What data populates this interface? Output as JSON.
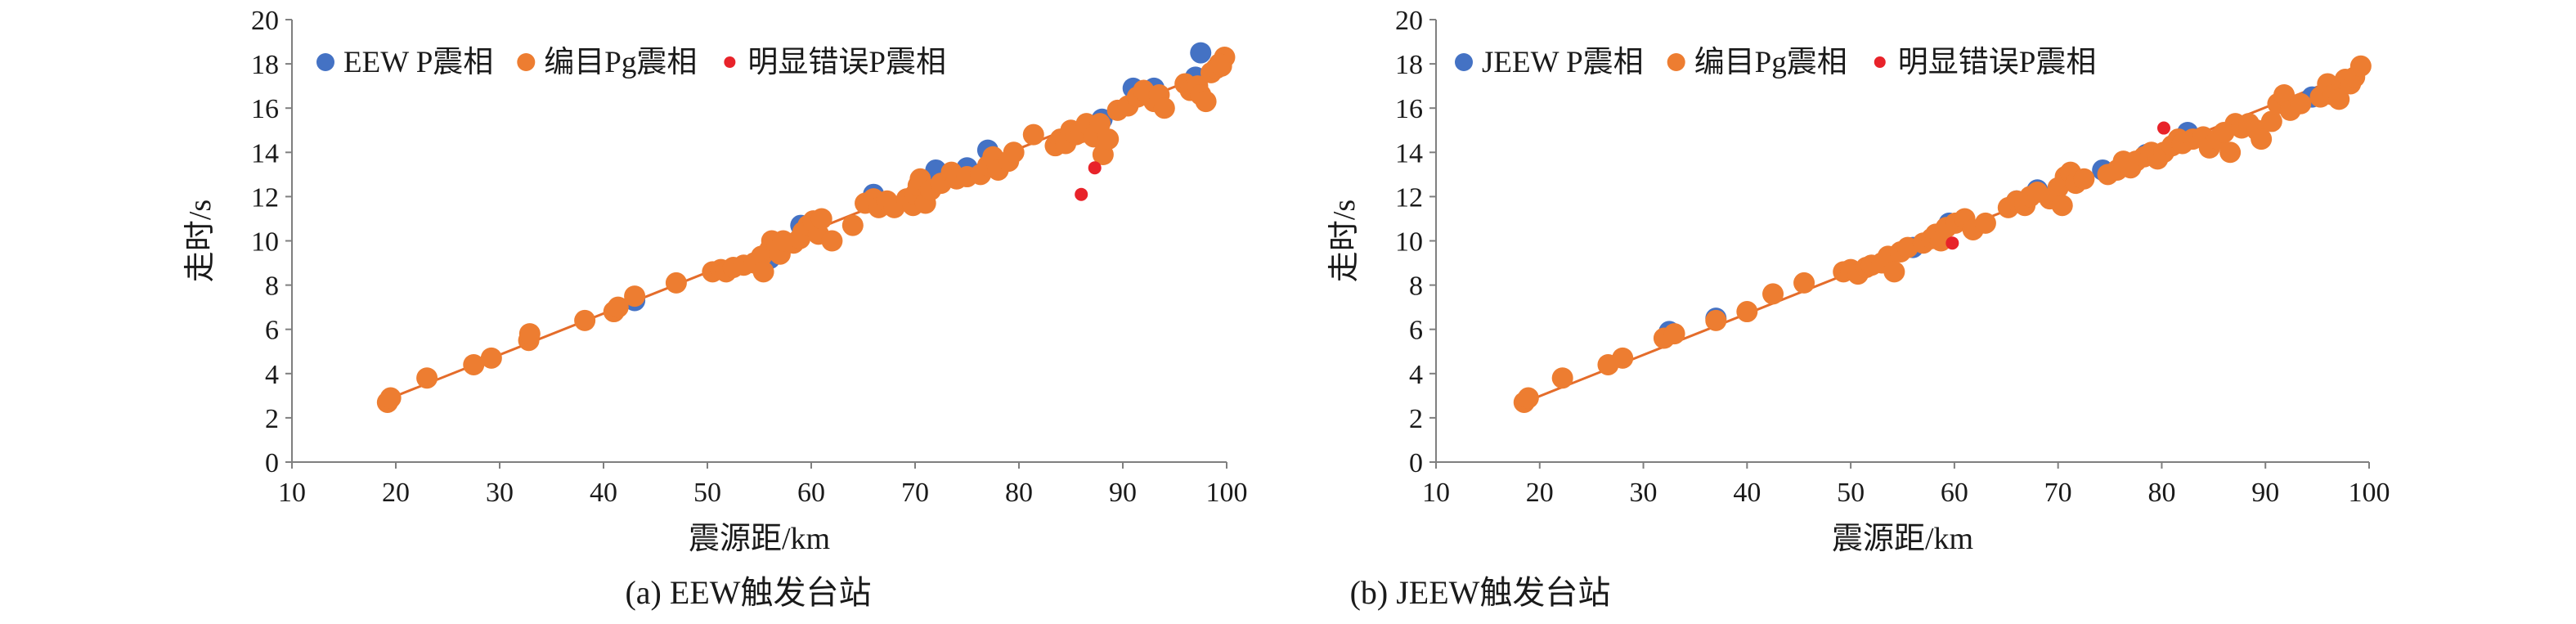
{
  "colors": {
    "eew": "#4472C4",
    "catalog": "#ED7D31",
    "error": "#E8232A",
    "fit": "#E46C2A",
    "axis": "#7f7f7f"
  },
  "chart_data": [
    {
      "type": "scatter",
      "caption": "(a) EEW触发台站",
      "xlabel": "震源距/km",
      "ylabel": "走时/s",
      "xlim": [
        10,
        100
      ],
      "ylim": [
        0,
        20
      ],
      "xticks": [
        10,
        20,
        30,
        40,
        50,
        60,
        70,
        80,
        90,
        100
      ],
      "yticks": [
        0,
        2,
        4,
        6,
        8,
        10,
        12,
        14,
        16,
        18,
        20
      ],
      "legend_position": "top-left",
      "series": [
        {
          "name": "EEW P震相",
          "color": "#4472C4",
          "points": [
            [
              43,
              7.3
            ],
            [
              56,
              9.2
            ],
            [
              59,
              10.7
            ],
            [
              66,
              12.1
            ],
            [
              72,
              13.2
            ],
            [
              75,
              13.3
            ],
            [
              77,
              14.1
            ],
            [
              88,
              15.5
            ],
            [
              91,
              16.9
            ],
            [
              93,
              16.9
            ],
            [
              97.5,
              18.5
            ],
            [
              97,
              17.4
            ],
            [
              99,
              17.8
            ]
          ]
        },
        {
          "name": "编目Pg震相",
          "color": "#ED7D31",
          "points": [
            [
              19.2,
              2.7
            ],
            [
              19.5,
              2.9
            ],
            [
              23,
              3.8
            ],
            [
              27.5,
              4.4
            ],
            [
              29.2,
              4.7
            ],
            [
              32.8,
              5.5
            ],
            [
              32.9,
              5.8
            ],
            [
              38.2,
              6.4
            ],
            [
              41,
              6.8
            ],
            [
              41.4,
              7.0
            ],
            [
              43,
              7.5
            ],
            [
              47,
              8.1
            ],
            [
              50.5,
              8.6
            ],
            [
              51.3,
              8.7
            ],
            [
              51.8,
              8.6
            ],
            [
              52.5,
              8.8
            ],
            [
              53.5,
              8.9
            ],
            [
              54.5,
              9.0
            ],
            [
              55.2,
              9.3
            ],
            [
              55.4,
              8.6
            ],
            [
              56,
              9.6
            ],
            [
              56.2,
              10.0
            ],
            [
              56.7,
              9.7
            ],
            [
              57,
              9.4
            ],
            [
              57.3,
              10.0
            ],
            [
              58.3,
              9.9
            ],
            [
              58.9,
              10.1
            ],
            [
              59.2,
              10.4
            ],
            [
              59.7,
              10.7
            ],
            [
              60.2,
              10.9
            ],
            [
              60.7,
              10.3
            ],
            [
              61,
              11.0
            ],
            [
              62,
              10.0
            ],
            [
              64,
              10.7
            ],
            [
              65.2,
              11.7
            ],
            [
              66,
              11.9
            ],
            [
              66.5,
              11.5
            ],
            [
              67.3,
              11.8
            ],
            [
              68,
              11.5
            ],
            [
              69.2,
              11.9
            ],
            [
              69.8,
              11.6
            ],
            [
              70,
              12.1
            ],
            [
              70.3,
              12.5
            ],
            [
              70.5,
              12.8
            ],
            [
              71,
              11.7
            ],
            [
              71.5,
              12.3
            ],
            [
              72.5,
              12.6
            ],
            [
              73.5,
              13.1
            ],
            [
              74,
              12.8
            ],
            [
              75,
              12.9
            ],
            [
              76.3,
              13.0
            ],
            [
              77,
              13.4
            ],
            [
              77.5,
              13.8
            ],
            [
              78,
              13.2
            ],
            [
              79,
              13.6
            ],
            [
              79.5,
              14.0
            ],
            [
              81.4,
              14.8
            ],
            [
              83.5,
              14.3
            ],
            [
              84,
              14.6
            ],
            [
              84.5,
              14.4
            ],
            [
              85,
              15.0
            ],
            [
              85.5,
              14.8
            ],
            [
              86,
              14.9
            ],
            [
              86.5,
              15.3
            ],
            [
              87.2,
              14.7
            ],
            [
              87.8,
              15.3
            ],
            [
              88.1,
              13.9
            ],
            [
              88.6,
              14.6
            ],
            [
              89.5,
              15.9
            ],
            [
              90.5,
              16.1
            ],
            [
              91.4,
              16.5
            ],
            [
              92,
              16.8
            ],
            [
              93,
              16.3
            ],
            [
              93.5,
              16.6
            ],
            [
              94,
              16.0
            ],
            [
              96,
              17.1
            ],
            [
              96.5,
              16.8
            ],
            [
              97.2,
              17.0
            ],
            [
              97.5,
              16.6
            ],
            [
              98,
              16.3
            ],
            [
              98.5,
              17.6
            ],
            [
              99,
              17.8
            ],
            [
              99.5,
              17.9
            ],
            [
              99.8,
              18.3
            ],
            [
              99.3,
              18.0
            ]
          ]
        },
        {
          "name": "明显错误P震相",
          "color": "#E8232A",
          "points": [
            [
              86,
              12.1
            ],
            [
              87.3,
              13.3
            ]
          ]
        }
      ],
      "fit_line": {
        "x": [
          19,
          100
        ],
        "y": [
          2.8,
          17.9
        ]
      }
    },
    {
      "type": "scatter",
      "caption": "(b) JEEW触发台站",
      "xlabel": "震源距/km",
      "ylabel": "走时/s",
      "xlim": [
        10,
        100
      ],
      "ylim": [
        0,
        20
      ],
      "xticks": [
        10,
        20,
        30,
        40,
        50,
        60,
        70,
        80,
        90,
        100
      ],
      "yticks": [
        0,
        2,
        4,
        6,
        8,
        10,
        12,
        14,
        16,
        18,
        20
      ],
      "legend_position": "top-left",
      "series": [
        {
          "name": "JEEW P震相",
          "color": "#4472C4",
          "points": [
            [
              32.5,
              5.9
            ],
            [
              37,
              6.5
            ],
            [
              56,
              9.7
            ],
            [
              59.5,
              10.8
            ],
            [
              66,
              11.8
            ],
            [
              68,
              12.3
            ],
            [
              74.3,
              13.2
            ],
            [
              78.5,
              13.9
            ],
            [
              82.5,
              14.9
            ],
            [
              94.5,
              16.5
            ]
          ]
        },
        {
          "name": "编目Pg震相",
          "color": "#ED7D31",
          "points": [
            [
              18.5,
              2.7
            ],
            [
              18.9,
              2.9
            ],
            [
              22.2,
              3.8
            ],
            [
              26.6,
              4.4
            ],
            [
              28,
              4.7
            ],
            [
              32,
              5.6
            ],
            [
              33,
              5.8
            ],
            [
              37,
              6.4
            ],
            [
              40,
              6.8
            ],
            [
              42.5,
              7.6
            ],
            [
              45.5,
              8.1
            ],
            [
              49.3,
              8.6
            ],
            [
              50,
              8.7
            ],
            [
              50.7,
              8.5
            ],
            [
              51.5,
              8.8
            ],
            [
              52,
              8.9
            ],
            [
              53,
              9.0
            ],
            [
              53.6,
              9.3
            ],
            [
              54.2,
              8.6
            ],
            [
              54.8,
              9.5
            ],
            [
              55.5,
              9.7
            ],
            [
              57,
              9.9
            ],
            [
              57.8,
              10.1
            ],
            [
              58.2,
              10.3
            ],
            [
              58.7,
              10.0
            ],
            [
              59.2,
              10.6
            ],
            [
              60.1,
              10.8
            ],
            [
              61,
              11.0
            ],
            [
              61.8,
              10.5
            ],
            [
              63,
              10.8
            ],
            [
              65.2,
              11.5
            ],
            [
              66,
              11.8
            ],
            [
              66.8,
              11.6
            ],
            [
              67.3,
              12.0
            ],
            [
              68,
              12.2
            ],
            [
              69.2,
              11.9
            ],
            [
              70,
              12.4
            ],
            [
              70.4,
              11.6
            ],
            [
              70.7,
              12.9
            ],
            [
              71.2,
              13.1
            ],
            [
              71.7,
              12.6
            ],
            [
              72.5,
              12.8
            ],
            [
              74.8,
              13.0
            ],
            [
              75.7,
              13.2
            ],
            [
              76.3,
              13.6
            ],
            [
              77,
              13.3
            ],
            [
              77.5,
              13.6
            ],
            [
              78.3,
              13.8
            ],
            [
              79,
              14.0
            ],
            [
              79.6,
              13.7
            ],
            [
              80.2,
              14.0
            ],
            [
              81,
              14.3
            ],
            [
              81.6,
              14.6
            ],
            [
              82,
              14.4
            ],
            [
              83,
              14.6
            ],
            [
              84,
              14.7
            ],
            [
              84.6,
              14.2
            ],
            [
              85.4,
              14.6
            ],
            [
              86,
              14.9
            ],
            [
              86.6,
              14.0
            ],
            [
              87.1,
              15.3
            ],
            [
              87.7,
              15.1
            ],
            [
              88.4,
              15.3
            ],
            [
              89.2,
              15.0
            ],
            [
              89.6,
              14.6
            ],
            [
              90.6,
              15.4
            ],
            [
              91.2,
              16.2
            ],
            [
              91.8,
              16.6
            ],
            [
              92.4,
              15.9
            ],
            [
              93.4,
              16.2
            ],
            [
              95.3,
              16.5
            ],
            [
              96,
              17.1
            ],
            [
              96.5,
              16.6
            ],
            [
              97.1,
              16.4
            ],
            [
              97.7,
              17.3
            ],
            [
              98.2,
              17.1
            ],
            [
              98.6,
              17.4
            ],
            [
              99.2,
              17.9
            ]
          ]
        },
        {
          "name": "明显错误P震相",
          "color": "#E8232A",
          "points": [
            [
              59.8,
              9.9
            ],
            [
              80.2,
              15.1
            ]
          ]
        }
      ],
      "fit_line": {
        "x": [
          18.5,
          99.5
        ],
        "y": [
          2.7,
          17.8
        ]
      }
    }
  ]
}
